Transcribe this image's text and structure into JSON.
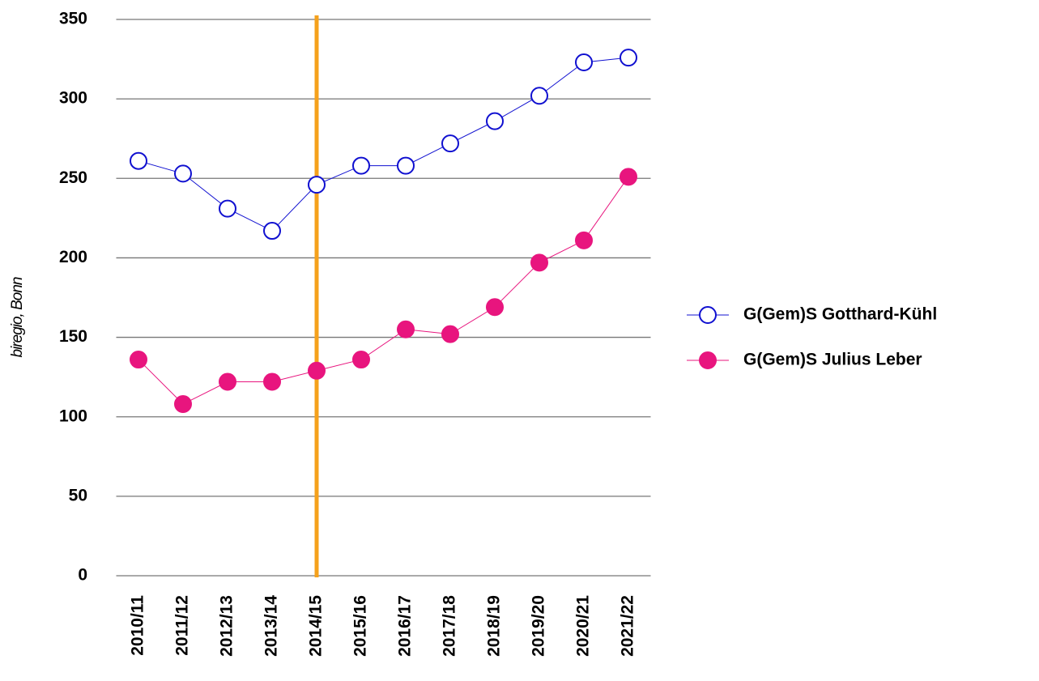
{
  "chart_data": {
    "type": "line",
    "y_label": "biregio, Bonn",
    "categories": [
      "2010/11",
      "2011/12",
      "2012/13",
      "2013/14",
      "2014/15",
      "2015/16",
      "2016/17",
      "2017/18",
      "2018/19",
      "2019/20",
      "2020/21",
      "2021/22"
    ],
    "series": [
      {
        "name": "G(Gem)S Gotthard-Kühl",
        "color": "#1010d0",
        "marker": "open",
        "values": [
          261,
          253,
          231,
          217,
          246,
          258,
          258,
          272,
          286,
          302,
          323,
          326
        ]
      },
      {
        "name": "G(Gem)S Julius Leber",
        "color": "#e8157e",
        "marker": "filled",
        "values": [
          136,
          108,
          122,
          122,
          129,
          136,
          155,
          152,
          169,
          197,
          211,
          251
        ]
      }
    ],
    "vline": {
      "x": "2014/15",
      "color": "#f5a11c"
    },
    "ylim": [
      0,
      350
    ],
    "yticks": [
      0,
      50,
      100,
      150,
      200,
      250,
      300,
      350
    ],
    "grid": true,
    "legend": "right"
  }
}
